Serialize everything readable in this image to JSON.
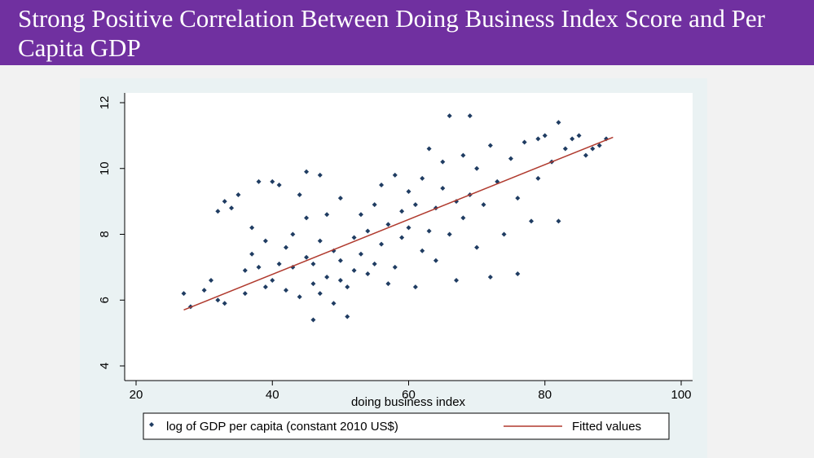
{
  "slide": {
    "title": "Strong Positive Correlation Between Doing Business Index Score and Per Capita GDP",
    "title_bg": "#7030a0"
  },
  "chart_data": {
    "type": "scatter",
    "xlabel": "doing business index",
    "ylabel": "",
    "xlim": [
      20,
      100
    ],
    "ylim": [
      4,
      12
    ],
    "xticks": [
      "20",
      "40",
      "60",
      "80",
      "100"
    ],
    "yticks": [
      "4",
      "6",
      "8",
      "10",
      "12"
    ],
    "grid": false,
    "legend": "bottom",
    "series": [
      {
        "name": "log of GDP per capita (constant 2010 US$)",
        "type": "scatter",
        "marker": "diamond",
        "color": "#1f3c62",
        "points": [
          [
            27,
            6.2
          ],
          [
            28,
            5.8
          ],
          [
            30,
            6.3
          ],
          [
            31,
            6.6
          ],
          [
            32,
            6.0
          ],
          [
            33,
            5.9
          ],
          [
            32,
            8.7
          ],
          [
            33,
            9.0
          ],
          [
            34,
            8.8
          ],
          [
            35,
            9.2
          ],
          [
            36,
            6.2
          ],
          [
            36,
            6.9
          ],
          [
            37,
            7.4
          ],
          [
            37,
            8.2
          ],
          [
            38,
            7.0
          ],
          [
            38,
            9.6
          ],
          [
            39,
            6.4
          ],
          [
            39,
            7.8
          ],
          [
            40,
            6.6
          ],
          [
            40,
            9.6
          ],
          [
            41,
            7.1
          ],
          [
            41,
            9.5
          ],
          [
            42,
            6.3
          ],
          [
            42,
            7.6
          ],
          [
            43,
            7.0
          ],
          [
            43,
            8.0
          ],
          [
            44,
            6.1
          ],
          [
            44,
            9.2
          ],
          [
            45,
            7.3
          ],
          [
            45,
            8.5
          ],
          [
            45,
            9.9
          ],
          [
            46,
            5.4
          ],
          [
            46,
            6.5
          ],
          [
            46,
            7.1
          ],
          [
            47,
            6.2
          ],
          [
            47,
            7.8
          ],
          [
            47,
            9.8
          ],
          [
            48,
            6.7
          ],
          [
            48,
            8.6
          ],
          [
            49,
            5.9
          ],
          [
            49,
            7.5
          ],
          [
            50,
            6.6
          ],
          [
            50,
            7.2
          ],
          [
            50,
            9.1
          ],
          [
            51,
            5.5
          ],
          [
            51,
            6.4
          ],
          [
            52,
            7.9
          ],
          [
            52,
            6.9
          ],
          [
            53,
            7.4
          ],
          [
            53,
            8.6
          ],
          [
            54,
            6.8
          ],
          [
            54,
            8.1
          ],
          [
            55,
            7.1
          ],
          [
            55,
            8.9
          ],
          [
            56,
            7.7
          ],
          [
            56,
            9.5
          ],
          [
            57,
            6.5
          ],
          [
            57,
            8.3
          ],
          [
            58,
            7.0
          ],
          [
            58,
            9.8
          ],
          [
            59,
            7.9
          ],
          [
            59,
            8.7
          ],
          [
            60,
            8.2
          ],
          [
            60,
            9.3
          ],
          [
            61,
            6.4
          ],
          [
            61,
            8.9
          ],
          [
            62,
            9.7
          ],
          [
            62,
            7.5
          ],
          [
            63,
            8.1
          ],
          [
            63,
            10.6
          ],
          [
            64,
            8.8
          ],
          [
            64,
            7.2
          ],
          [
            65,
            9.4
          ],
          [
            65,
            10.2
          ],
          [
            66,
            8.0
          ],
          [
            66,
            11.6
          ],
          [
            67,
            9.0
          ],
          [
            67,
            6.6
          ],
          [
            68,
            8.5
          ],
          [
            68,
            10.4
          ],
          [
            69,
            9.2
          ],
          [
            69,
            11.6
          ],
          [
            70,
            7.6
          ],
          [
            70,
            10.0
          ],
          [
            71,
            8.9
          ],
          [
            72,
            10.7
          ],
          [
            72,
            6.7
          ],
          [
            73,
            9.6
          ],
          [
            74,
            8.0
          ],
          [
            75,
            10.3
          ],
          [
            76,
            9.1
          ],
          [
            76,
            6.8
          ],
          [
            77,
            10.8
          ],
          [
            78,
            8.4
          ],
          [
            79,
            10.9
          ],
          [
            79,
            9.7
          ],
          [
            80,
            11.0
          ],
          [
            81,
            10.2
          ],
          [
            82,
            11.4
          ],
          [
            82,
            8.4
          ],
          [
            83,
            10.6
          ],
          [
            84,
            10.9
          ],
          [
            85,
            11.0
          ],
          [
            86,
            10.4
          ],
          [
            87,
            10.6
          ],
          [
            88,
            10.7
          ],
          [
            89,
            10.9
          ]
        ]
      },
      {
        "name": "Fitted values",
        "type": "line",
        "color": "#b03a2e",
        "points": [
          [
            27,
            5.7
          ],
          [
            90,
            10.95
          ]
        ]
      }
    ]
  }
}
